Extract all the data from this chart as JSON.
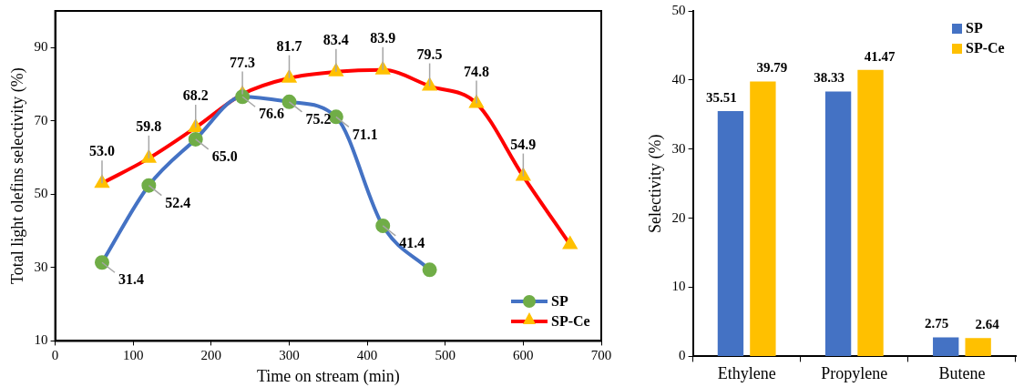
{
  "chart_data": [
    {
      "type": "line",
      "xlabel": "Time on stream (min)",
      "ylabel": "Total light olefins selectivity (%)",
      "x": [
        60,
        120,
        180,
        240,
        300,
        360,
        420,
        480,
        540,
        600,
        660
      ],
      "xlim": [
        0,
        700
      ],
      "xticks": [
        0,
        100,
        200,
        300,
        400,
        500,
        600,
        700
      ],
      "ylim": [
        10,
        100
      ],
      "yticks": [
        10,
        30,
        50,
        70,
        90
      ],
      "grid": false,
      "legend": "bottom right",
      "series": [
        {
          "name": "SP",
          "x": [
            60,
            120,
            180,
            240,
            300,
            360,
            420,
            480
          ],
          "color": "#4472c4",
          "colors": [
            "#70ad47",
            "#70ad47",
            "#70ad47",
            "#70ad47",
            "#70ad47",
            "#70ad47",
            "#70ad47",
            "#70ad47"
          ],
          "marker": "circle",
          "values": [
            31.4,
            52.4,
            65.0,
            76.6,
            75.2,
            71.1,
            41.4,
            29.4
          ],
          "value_labels": [
            "31.4",
            "52.4",
            "65.0",
            "76.6",
            "75.2",
            "71.1",
            "41.4",
            null
          ]
        },
        {
          "name": "SP-Ce",
          "color": "#ff0000",
          "colors": [
            "#ffc000",
            "#ffc000",
            "#ffc000",
            "#ffc000",
            "#ffc000",
            "#ffc000",
            "#ffc000",
            "#ffc000",
            "#ffc000",
            "#ffc000",
            "#ffc000"
          ],
          "marker": "triangle",
          "values": [
            53.0,
            59.8,
            68.2,
            77.3,
            81.7,
            83.4,
            83.9,
            79.5,
            74.8,
            54.9,
            36.3
          ],
          "value_labels": [
            "53.0",
            "59.8",
            "68.2",
            "77.3",
            "81.7",
            "83.4",
            "83.9",
            "79.5",
            "74.8",
            "54.9",
            null
          ]
        }
      ]
    },
    {
      "type": "bar",
      "ylabel": "Selectivity (%)",
      "categories": [
        "Ethylene",
        "Propylene",
        "Butene"
      ],
      "ylim": [
        0,
        50
      ],
      "yticks": [
        0,
        10,
        20,
        30,
        40,
        50
      ],
      "grid": false,
      "legend": "top right",
      "data_labels": true,
      "series": [
        {
          "name": "SP",
          "color": "#4472c4",
          "values": [
            35.51,
            38.33,
            2.75
          ]
        },
        {
          "name": "SP-Ce",
          "color": "#ffc000",
          "values": [
            39.79,
            41.47,
            2.64
          ]
        }
      ]
    }
  ]
}
